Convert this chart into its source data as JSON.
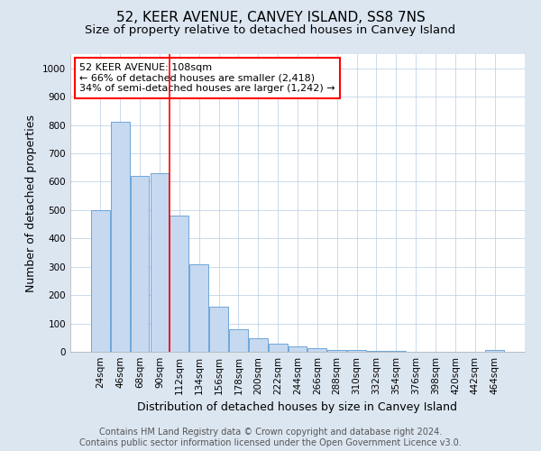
{
  "title": "52, KEER AVENUE, CANVEY ISLAND, SS8 7NS",
  "subtitle": "Size of property relative to detached houses in Canvey Island",
  "xlabel": "Distribution of detached houses by size in Canvey Island",
  "ylabel": "Number of detached properties",
  "footer_line1": "Contains HM Land Registry data © Crown copyright and database right 2024.",
  "footer_line2": "Contains public sector information licensed under the Open Government Licence v3.0.",
  "annotation_line1": "52 KEER AVENUE: 108sqm",
  "annotation_line2": "← 66% of detached houses are smaller (2,418)",
  "annotation_line3": "34% of semi-detached houses are larger (1,242) →",
  "bar_categories": [
    "24sqm",
    "46sqm",
    "68sqm",
    "90sqm",
    "112sqm",
    "134sqm",
    "156sqm",
    "178sqm",
    "200sqm",
    "222sqm",
    "244sqm",
    "266sqm",
    "288sqm",
    "310sqm",
    "332sqm",
    "354sqm",
    "376sqm",
    "398sqm",
    "420sqm",
    "442sqm",
    "464sqm"
  ],
  "bar_values": [
    500,
    810,
    620,
    630,
    480,
    310,
    160,
    78,
    47,
    30,
    20,
    12,
    7,
    5,
    3,
    2,
    1,
    1,
    0,
    0,
    5
  ],
  "bar_color": "#c6d9f0",
  "bar_edge_color": "#5b9bd5",
  "vline_color": "red",
  "vline_x": 3.5,
  "ylim_max": 1050,
  "yticks": [
    0,
    100,
    200,
    300,
    400,
    500,
    600,
    700,
    800,
    900,
    1000
  ],
  "annotation_box_color": "white",
  "annotation_box_edge_color": "red",
  "background_color": "#dce6f1",
  "plot_bg_color": "white",
  "grid_color": "#b8cce4",
  "title_fontsize": 11,
  "subtitle_fontsize": 9.5,
  "axis_label_fontsize": 9,
  "tick_fontsize": 7.5,
  "annotation_fontsize": 8,
  "footer_fontsize": 7
}
